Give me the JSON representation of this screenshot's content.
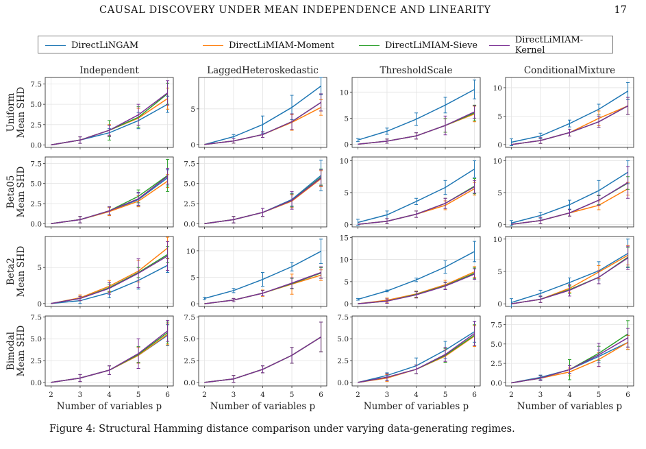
{
  "page": {
    "running_title": "CAUSAL DISCOVERY UNDER MEAN INDEPENDENCE AND LINEARITY",
    "page_number": "17",
    "caption": "Figure 4: Structural Hamming distance comparison under varying data-generating regimes."
  },
  "legend": [
    {
      "name": "DirectLiNGAM",
      "color": "#1f77b4"
    },
    {
      "name": "DirectLiMIAM-Moment",
      "color": "#ff7f0e"
    },
    {
      "name": "DirectLiMIAM-Sieve",
      "color": "#2ca02c"
    },
    {
      "name": "DirectLiMIAM-Kernel",
      "color": "#7b3294"
    }
  ],
  "columns": [
    "Independent",
    "LaggedHeteroskedastic",
    "ThresholdScale",
    "ConditionalMixture"
  ],
  "rows": [
    {
      "name": "Uniform",
      "ylabel": "Mean SHD"
    },
    {
      "name": "Beta05",
      "ylabel": "Mean SHD"
    },
    {
      "name": "Beta2",
      "ylabel": "Mean SHD"
    },
    {
      "name": "Bimodal",
      "ylabel": "Mean SHD"
    }
  ],
  "xlabel": "Number of variables p",
  "x_ticks": [
    "2",
    "3",
    "4",
    "5",
    "6"
  ],
  "chart_data": {
    "type": "line",
    "x": [
      2,
      3,
      4,
      5,
      6
    ],
    "grid": true,
    "legend_placement": "top",
    "series_names": [
      "DirectLiNGAM",
      "DirectLiMIAM-Moment",
      "DirectLiMIAM-Sieve",
      "DirectLiMIAM-Kernel"
    ],
    "panels": [
      {
        "row": "Uniform",
        "column": "Independent",
        "ylim": [
          -0.3,
          8.3
        ],
        "yticks": [
          "0.0",
          "2.5",
          "5.0",
          "7.5"
        ],
        "series": [
          [
            0,
            0.6,
            1.5,
            3.0,
            5.0
          ],
          [
            0,
            0.6,
            1.8,
            3.3,
            5.7
          ],
          [
            0,
            0.6,
            1.8,
            3.4,
            6.3
          ],
          [
            0,
            0.6,
            1.8,
            3.7,
            6.4
          ]
        ],
        "errors": [
          [
            0,
            0.4,
            0.5,
            1.0,
            1.0
          ],
          [
            0,
            0.4,
            0.7,
            1.2,
            1.3
          ],
          [
            0,
            0.4,
            1.2,
            1.3,
            1.3
          ],
          [
            0,
            0.4,
            0.6,
            1.3,
            1.5
          ]
        ]
      },
      {
        "row": "Uniform",
        "column": "LaggedHeteroskedastic",
        "ylim": [
          -0.4,
          9.4
        ],
        "yticks": [
          "0",
          "5"
        ],
        "series": [
          [
            0,
            1.1,
            2.8,
            5.2,
            8.2
          ],
          [
            0,
            0.5,
            1.4,
            3.1,
            5.2
          ],
          [
            0,
            0.5,
            1.4,
            3.2,
            5.9
          ],
          [
            0,
            0.5,
            1.4,
            3.2,
            5.9
          ]
        ],
        "errors": [
          [
            0,
            0.3,
            1.2,
            1.7,
            1.2
          ],
          [
            0,
            0.3,
            0.4,
            1.1,
            1.1
          ],
          [
            0,
            0.3,
            0.4,
            1.1,
            1.2
          ],
          [
            0,
            0.3,
            0.4,
            1.1,
            1.2
          ]
        ]
      },
      {
        "row": "Uniform",
        "column": "ThresholdScale",
        "ylim": [
          -0.6,
          12.8
        ],
        "yticks": [
          "0",
          "5",
          "10"
        ],
        "series": [
          [
            0.8,
            2.5,
            4.8,
            7.5,
            10.5
          ],
          [
            0,
            0.6,
            1.6,
            3.6,
            5.8
          ],
          [
            0,
            0.6,
            1.6,
            3.6,
            6.0
          ],
          [
            0,
            0.6,
            1.6,
            3.6,
            6.2
          ]
        ],
        "errors": [
          [
            0.3,
            0.6,
            1.2,
            1.5,
            1.8
          ],
          [
            0,
            0.4,
            0.6,
            1.3,
            1.5
          ],
          [
            0,
            0.4,
            0.6,
            1.3,
            1.5
          ],
          [
            0,
            0.4,
            0.6,
            1.8,
            1.2
          ]
        ]
      },
      {
        "row": "Uniform",
        "column": "ConditionalMixture",
        "ylim": [
          -0.5,
          11.8
        ],
        "yticks": [
          "0",
          "5",
          "10"
        ],
        "series": [
          [
            0.4,
            1.5,
            3.7,
            6.2,
            9.4
          ],
          [
            0,
            0.7,
            2.1,
            4.6,
            6.8
          ],
          [
            0,
            0.7,
            2.1,
            4.0,
            6.8
          ],
          [
            0,
            0.7,
            2.1,
            4.0,
            6.8
          ]
        ],
        "errors": [
          [
            0.6,
            0.5,
            0.6,
            0.9,
            1.5
          ],
          [
            0,
            0.5,
            0.6,
            1.3,
            1.5
          ],
          [
            0,
            0.5,
            0.6,
            1.0,
            1.5
          ],
          [
            0,
            0.5,
            0.6,
            1.0,
            1.5
          ]
        ]
      },
      {
        "row": "Beta05",
        "column": "Independent",
        "ylim": [
          -0.4,
          8.3
        ],
        "yticks": [
          "0.0",
          "2.5",
          "5.0",
          "7.5"
        ],
        "series": [
          [
            0,
            0.5,
            1.5,
            3.0,
            5.7
          ],
          [
            0,
            0.5,
            1.5,
            2.8,
            5.3
          ],
          [
            0,
            0.5,
            1.6,
            3.4,
            6.0
          ],
          [
            0,
            0.5,
            1.6,
            3.1,
            5.9
          ]
        ],
        "errors": [
          [
            0,
            0.4,
            0.5,
            0.8,
            1.0
          ],
          [
            0,
            0.4,
            0.5,
            0.7,
            0.8
          ],
          [
            0,
            0.4,
            0.5,
            0.8,
            2.0
          ],
          [
            0,
            0.4,
            0.5,
            0.8,
            1.0
          ]
        ]
      },
      {
        "row": "Beta05",
        "column": "LaggedHeteroskedastic",
        "ylim": [
          -0.4,
          8.3
        ],
        "yticks": [
          "0.0",
          "2.5",
          "5.0",
          "7.5"
        ],
        "series": [
          [
            0,
            0.5,
            1.4,
            3.0,
            6.0
          ],
          [
            0,
            0.5,
            1.4,
            2.8,
            5.6
          ],
          [
            0,
            0.5,
            1.4,
            2.9,
            5.8
          ],
          [
            0,
            0.5,
            1.4,
            2.9,
            5.7
          ]
        ],
        "errors": [
          [
            0,
            0.4,
            0.5,
            0.8,
            1.9
          ],
          [
            0,
            0.4,
            0.5,
            0.8,
            1.0
          ],
          [
            0,
            0.4,
            0.5,
            0.8,
            1.0
          ],
          [
            0,
            0.4,
            0.5,
            1.1,
            1.0
          ]
        ]
      },
      {
        "row": "Beta05",
        "column": "ThresholdScale",
        "ylim": [
          -0.4,
          10.6
        ],
        "yticks": [
          "0",
          "5",
          "10"
        ],
        "series": [
          [
            0.3,
            1.5,
            3.6,
            5.8,
            8.7
          ],
          [
            0,
            0.5,
            1.6,
            3.0,
            5.6
          ],
          [
            0,
            0.5,
            1.6,
            3.3,
            6.0
          ],
          [
            0,
            0.5,
            1.6,
            3.3,
            5.9
          ]
        ],
        "errors": [
          [
            0.5,
            0.6,
            0.5,
            1.1,
            1.3
          ],
          [
            0,
            0.4,
            0.5,
            0.7,
            1.0
          ],
          [
            0,
            0.4,
            0.5,
            0.8,
            1.2
          ],
          [
            0,
            0.4,
            0.5,
            0.8,
            1.0
          ]
        ]
      },
      {
        "row": "Beta05",
        "column": "ConditionalMixture",
        "ylim": [
          -0.4,
          10.6
        ],
        "yticks": [
          "0",
          "5",
          "10"
        ],
        "series": [
          [
            0.2,
            1.4,
            3.1,
            5.3,
            8.2
          ],
          [
            0,
            0.6,
            1.8,
            3.0,
            5.6
          ],
          [
            0,
            0.6,
            1.8,
            3.8,
            6.5
          ],
          [
            0,
            0.6,
            1.8,
            3.8,
            6.6
          ]
        ],
        "errors": [
          [
            0.4,
            0.5,
            0.7,
            1.6,
            1.8
          ],
          [
            0,
            0.5,
            0.5,
            0.7,
            1.0
          ],
          [
            0,
            0.5,
            0.5,
            0.7,
            1.0
          ],
          [
            0,
            0.5,
            0.5,
            0.8,
            2.5
          ]
        ]
      },
      {
        "row": "Beta2",
        "column": "Independent",
        "ylim": [
          -0.4,
          9.3
        ],
        "yticks": [
          "0",
          "5"
        ],
        "series": [
          [
            0,
            0.4,
            1.5,
            3.2,
            5.3
          ],
          [
            0,
            0.8,
            2.4,
            4.5,
            7.7
          ],
          [
            0,
            0.7,
            2.2,
            4.3,
            6.8
          ],
          [
            0,
            0.7,
            2.1,
            4.2,
            6.6
          ]
        ],
        "errors": [
          [
            0,
            0.4,
            0.7,
            1.2,
            1.0
          ],
          [
            0,
            0.4,
            0.8,
            1.5,
            1.5
          ],
          [
            0,
            0.3,
            0.5,
            0.7,
            1.1
          ],
          [
            0,
            0.3,
            0.8,
            2.0,
            2.0
          ]
        ]
      },
      {
        "row": "Beta2",
        "column": "LaggedHeteroskedastic",
        "ylim": [
          -0.5,
          12.7
        ],
        "yticks": [
          "0",
          "5",
          "10"
        ],
        "series": [
          [
            1.0,
            2.5,
            4.6,
            7.0,
            9.9
          ],
          [
            0,
            0.7,
            2.0,
            3.7,
            5.4
          ],
          [
            0,
            0.7,
            2.0,
            3.8,
            5.8
          ],
          [
            0,
            0.7,
            2.0,
            3.9,
            5.9
          ]
        ],
        "errors": [
          [
            0.2,
            0.4,
            1.3,
            0.8,
            2.3
          ],
          [
            0,
            0.3,
            0.6,
            1.9,
            1.0
          ],
          [
            0,
            0.3,
            0.5,
            1.0,
            1.0
          ],
          [
            0,
            0.3,
            0.5,
            1.0,
            1.1
          ]
        ]
      },
      {
        "row": "Beta2",
        "column": "ThresholdScale",
        "ylim": [
          -0.6,
          15.2
        ],
        "yticks": [
          "0",
          "5",
          "10",
          "15"
        ],
        "series": [
          [
            1.0,
            2.9,
            5.4,
            8.3,
            11.8
          ],
          [
            0,
            0.8,
            2.2,
            4.3,
            7.2
          ],
          [
            0,
            0.6,
            2.1,
            4.1,
            6.9
          ],
          [
            0,
            0.6,
            2.0,
            4.0,
            6.7
          ]
        ],
        "errors": [
          [
            0.2,
            0.2,
            0.4,
            1.4,
            2.3
          ],
          [
            0,
            0.5,
            0.7,
            1.0,
            1.2
          ],
          [
            0,
            0.5,
            0.7,
            0.8,
            1.2
          ],
          [
            0,
            0.5,
            0.7,
            0.8,
            1.2
          ]
        ]
      },
      {
        "row": "Beta2",
        "column": "ConditionalMixture",
        "ylim": [
          -0.4,
          10.4
        ],
        "yticks": [
          "0",
          "5",
          "10"
        ],
        "series": [
          [
            0.2,
            1.6,
            3.3,
            5.1,
            7.8
          ],
          [
            0,
            0.7,
            2.4,
            4.9,
            7.5
          ],
          [
            0,
            0.7,
            2.2,
            4.1,
            7.2
          ],
          [
            0,
            0.7,
            2.1,
            4.1,
            7.1
          ]
        ],
        "errors": [
          [
            0.6,
            0.5,
            0.7,
            1.4,
            2.2
          ],
          [
            0,
            0.5,
            0.6,
            1.0,
            1.5
          ],
          [
            0,
            0.5,
            0.6,
            1.0,
            1.5
          ],
          [
            0,
            0.5,
            0.9,
            1.0,
            1.8
          ]
        ]
      },
      {
        "row": "Bimodal",
        "column": "Independent",
        "ylim": [
          -0.4,
          7.6
        ],
        "yticks": [
          "0.0",
          "2.5",
          "5.0",
          "7.5"
        ],
        "series": [
          [
            0,
            0.5,
            1.4,
            3.1,
            5.4
          ],
          [
            0,
            0.5,
            1.4,
            3.1,
            5.5
          ],
          [
            0,
            0.5,
            1.4,
            3.2,
            5.7
          ],
          [
            0,
            0.5,
            1.4,
            3.3,
            5.9
          ]
        ],
        "errors": [
          [
            0,
            0.4,
            0.5,
            0.9,
            1.2
          ],
          [
            0,
            0.4,
            0.5,
            0.9,
            1.2
          ],
          [
            0,
            0.4,
            0.5,
            0.9,
            1.2
          ],
          [
            0,
            0.4,
            0.5,
            1.7,
            1.2
          ]
        ]
      },
      {
        "row": "Bimodal",
        "column": "LaggedHeteroskedastic",
        "ylim": [
          -0.4,
          7.6
        ],
        "yticks": [
          "0.0",
          "2.5",
          "5.0",
          "7.5"
        ],
        "series": [
          [
            0,
            0.4,
            1.5,
            3.1,
            5.2
          ],
          [
            0,
            0.4,
            1.5,
            3.1,
            5.2
          ],
          [
            0,
            0.4,
            1.5,
            3.1,
            5.2
          ],
          [
            0,
            0.4,
            1.5,
            3.1,
            5.2
          ]
        ],
        "errors": [
          [
            0,
            0.4,
            0.4,
            0.9,
            1.7
          ],
          [
            0,
            0.4,
            0.4,
            0.9,
            1.7
          ],
          [
            0,
            0.4,
            0.4,
            0.9,
            1.7
          ],
          [
            0,
            0.4,
            0.4,
            0.9,
            1.7
          ]
        ]
      },
      {
        "row": "Bimodal",
        "column": "ThresholdScale",
        "ylim": [
          -0.4,
          7.6
        ],
        "yticks": [
          "0.0",
          "2.5",
          "5.0",
          "7.5"
        ],
        "series": [
          [
            0,
            0.8,
            1.9,
            3.7,
            5.8
          ],
          [
            0,
            0.5,
            1.5,
            3.0,
            5.3
          ],
          [
            0,
            0.6,
            1.5,
            3.1,
            5.4
          ],
          [
            0,
            0.6,
            1.5,
            3.2,
            5.6
          ]
        ],
        "errors": [
          [
            0,
            0.3,
            0.9,
            1.0,
            1.2
          ],
          [
            0,
            0.4,
            0.5,
            0.7,
            1.2
          ],
          [
            0,
            0.4,
            0.5,
            0.8,
            1.2
          ],
          [
            0,
            0.4,
            0.5,
            0.8,
            1.4
          ]
        ]
      },
      {
        "row": "Bimodal",
        "column": "ConditionalMixture",
        "ylim": [
          -0.4,
          8.6
        ],
        "yticks": [
          "0.0",
          "2.5",
          "5.0",
          "7.5"
        ],
        "series": [
          [
            0,
            0.7,
            1.7,
            3.4,
            5.2
          ],
          [
            0,
            0.6,
            1.4,
            3.0,
            5.2
          ],
          [
            0,
            0.6,
            1.7,
            3.8,
            6.3
          ],
          [
            0,
            0.6,
            1.7,
            3.6,
            5.8
          ]
        ],
        "errors": [
          [
            0,
            0.3,
            0.5,
            0.8,
            0.9
          ],
          [
            0,
            0.3,
            0.5,
            0.9,
            0.9
          ],
          [
            0,
            0.3,
            1.3,
            0.9,
            1.7
          ],
          [
            0,
            0.3,
            0.5,
            1.5,
            1.2
          ]
        ]
      }
    ]
  }
}
